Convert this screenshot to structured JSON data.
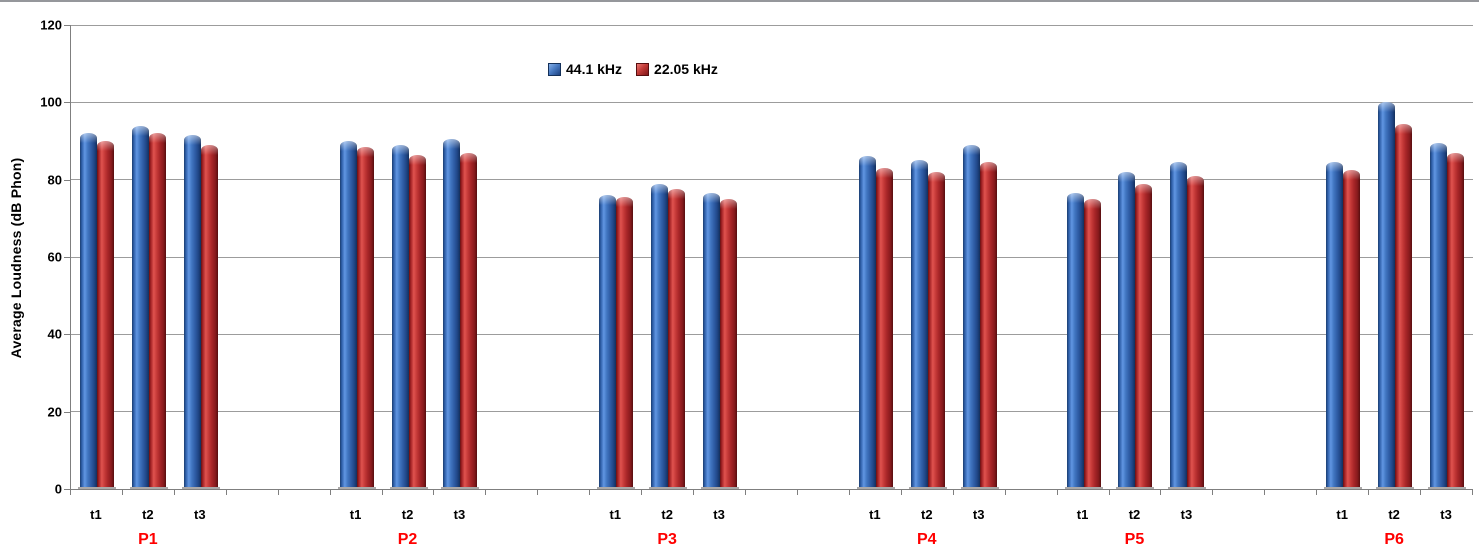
{
  "chart_data": {
    "type": "bar",
    "title": "",
    "ylabel": "Average Loudness (dB Phon)",
    "xlabel": "",
    "ylim": [
      0,
      120
    ],
    "yticks": [
      0,
      20,
      40,
      60,
      80,
      100,
      120
    ],
    "grid": true,
    "legend_position": "top-center",
    "group_labels": [
      "P1",
      "P2",
      "P3",
      "P4",
      "P5",
      "P6"
    ],
    "categories": [
      "t1",
      "t2",
      "t3"
    ],
    "series": [
      {
        "name": "44.1 kHz",
        "color": "#3A6CB4",
        "values": [
          [
            92,
            94,
            91.5
          ],
          [
            90,
            89,
            90.5
          ],
          [
            76,
            79,
            76.5
          ],
          [
            86,
            85,
            89
          ],
          [
            76.5,
            82,
            84.5
          ],
          [
            84.5,
            100,
            89.5
          ]
        ]
      },
      {
        "name": "22.05 kHz",
        "color": "#C23736",
        "values": [
          [
            90,
            92,
            89
          ],
          [
            88.5,
            86.5,
            87
          ],
          [
            75.5,
            77.5,
            75
          ],
          [
            83,
            82,
            84.5
          ],
          [
            75,
            79,
            81
          ],
          [
            82.5,
            94.5,
            87
          ]
        ]
      }
    ],
    "layout_hints": {
      "slots": 27,
      "group_slot_starts": [
        0,
        5,
        10,
        15,
        19,
        24
      ],
      "gap_note": "one blank slot between P4 and P5, two blank slots between other groups"
    },
    "colors": {
      "series_blue": "#3A6CB4",
      "series_red": "#C23736",
      "group_label": "#FF0000",
      "gridline": "#9C9C9C",
      "axis": "#7F7F7F",
      "background": "#FFFFFF"
    }
  }
}
